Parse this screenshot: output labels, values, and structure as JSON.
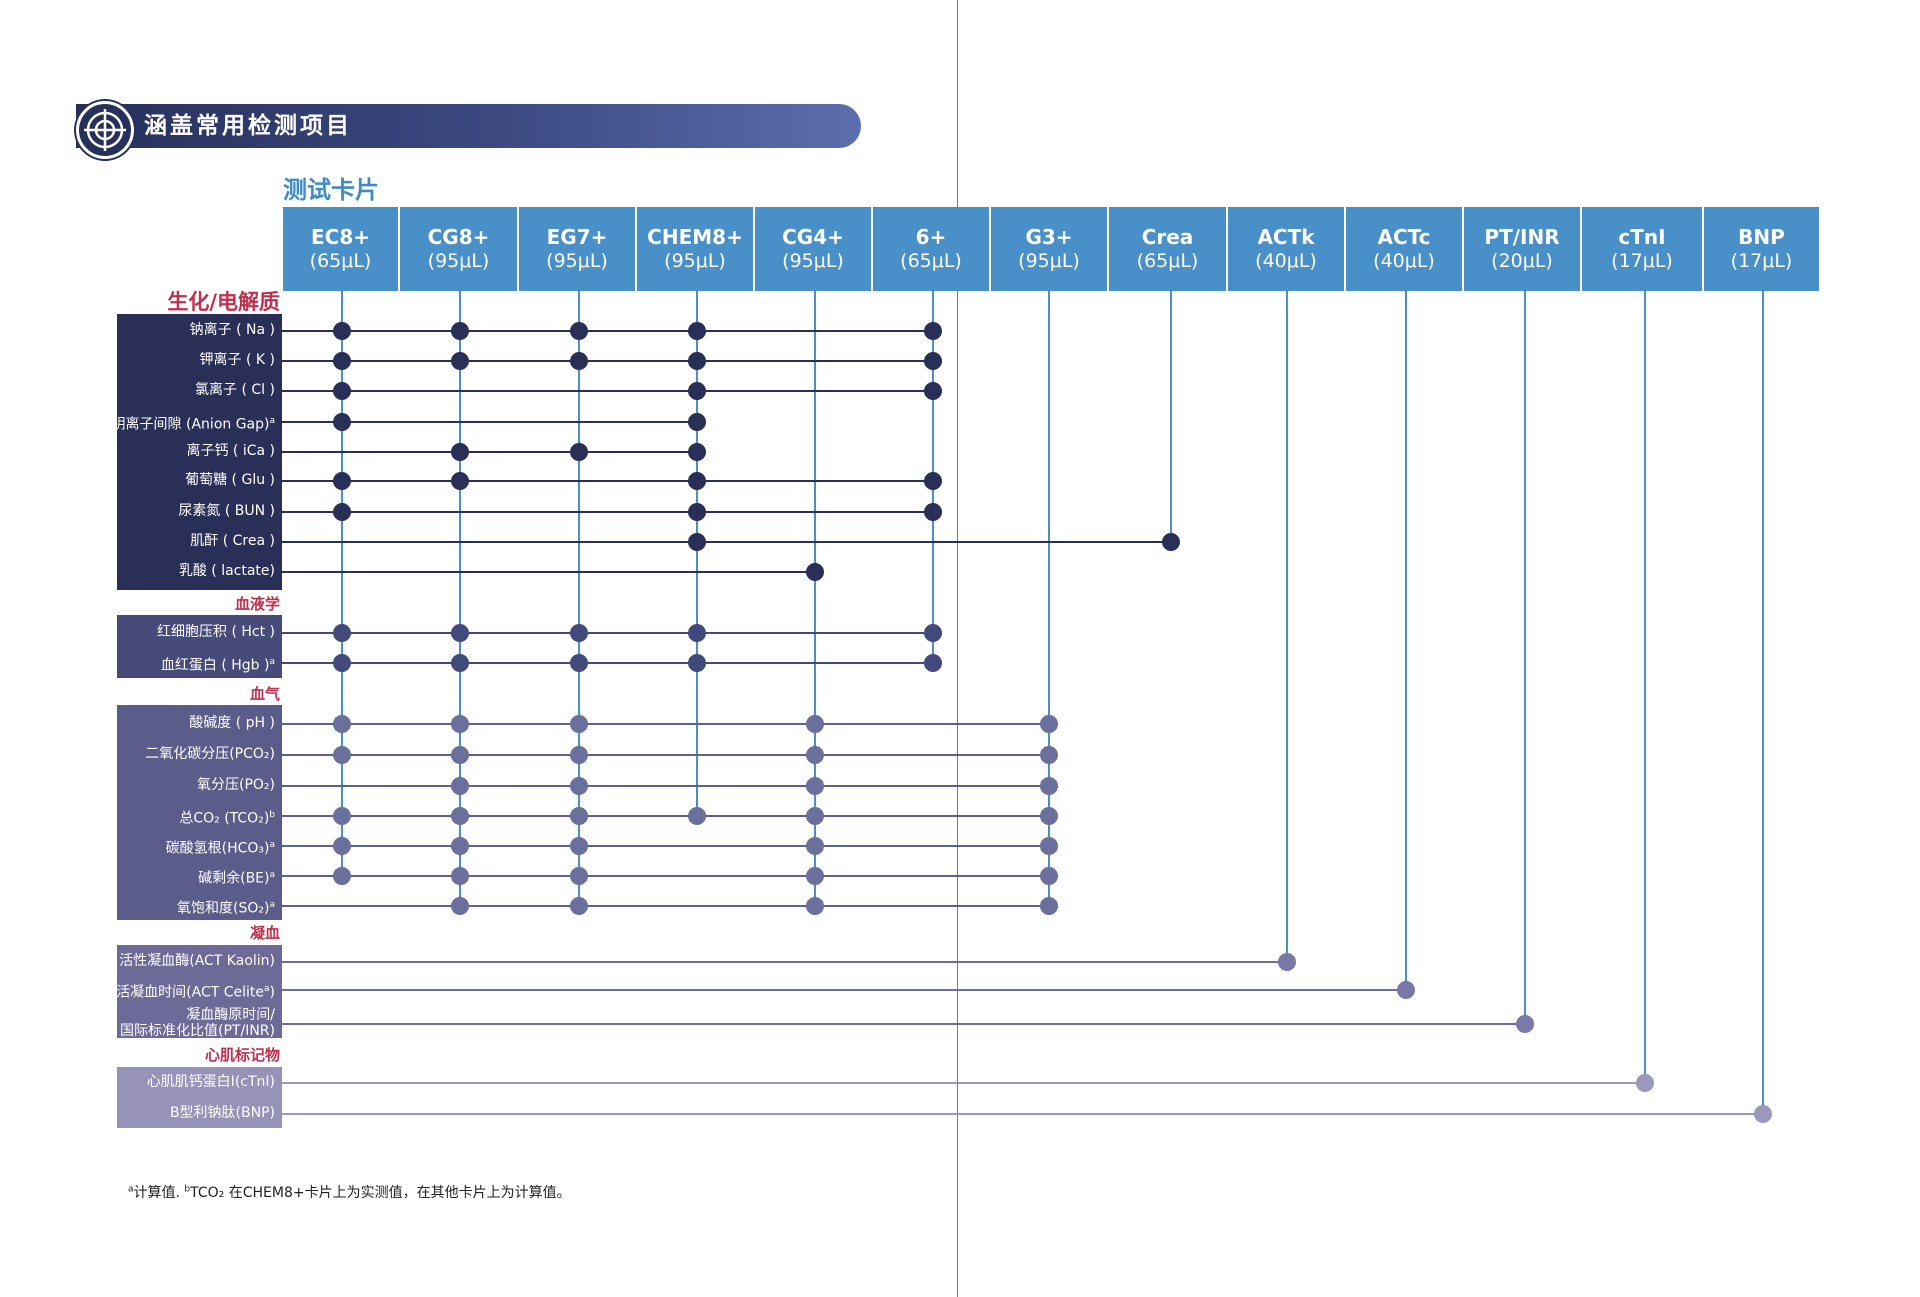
{
  "title": "涵盖常用检测项目",
  "cards_heading": "测试卡片",
  "cards": [
    {
      "name": "EC8+",
      "volume": "(65μL)"
    },
    {
      "name": "CG8+",
      "volume": "(95μL)"
    },
    {
      "name": "EG7+",
      "volume": "(95μL)"
    },
    {
      "name": "CHEM8+",
      "volume": "(95μL)"
    },
    {
      "name": "CG4+",
      "volume": "(95μL)"
    },
    {
      "name": "6+",
      "volume": "(65μL)"
    },
    {
      "name": "G3+",
      "volume": "(95μL)"
    },
    {
      "name": "Crea",
      "volume": "(65μL)"
    },
    {
      "name": "ACTk",
      "volume": "(40μL)"
    },
    {
      "name": "ACTc",
      "volume": "(40μL)"
    },
    {
      "name": "PT/INR",
      "volume": "(20μL)"
    },
    {
      "name": "cTnI",
      "volume": "(17μL)"
    },
    {
      "name": "BNP",
      "volume": "(17μL)"
    }
  ],
  "groups": [
    {
      "label": "生化/电解质",
      "color": "#2a2f58",
      "analytes": [
        {
          "label": "钠离子 ( Na )",
          "sup": "",
          "cards": [
            0,
            1,
            2,
            3,
            5
          ]
        },
        {
          "label": "钾离子 ( K )",
          "sup": "",
          "cards": [
            0,
            1,
            2,
            3,
            5
          ]
        },
        {
          "label": "氯离子 ( Cl )",
          "sup": "",
          "cards": [
            0,
            3,
            5
          ]
        },
        {
          "label": "阴离子间隙 (Anion Gap)",
          "sup": "a",
          "cards": [
            0,
            3
          ]
        },
        {
          "label": "离子钙 ( iCa )",
          "sup": "",
          "cards": [
            1,
            2,
            3
          ]
        },
        {
          "label": "葡萄糖 ( Glu )",
          "sup": "",
          "cards": [
            0,
            1,
            3,
            5
          ]
        },
        {
          "label": "尿素氮 ( BUN )",
          "sup": "",
          "cards": [
            0,
            3,
            5
          ]
        },
        {
          "label": "肌酐 ( Crea )",
          "sup": "",
          "cards": [
            3,
            7
          ]
        },
        {
          "label": "乳酸 ( lactate)",
          "sup": "",
          "cards": [
            4
          ]
        }
      ]
    },
    {
      "label": "血液学",
      "color": "#464b7a",
      "analytes": [
        {
          "label": "红细胞压积 ( Hct )",
          "sup": "",
          "cards": [
            0,
            1,
            2,
            3,
            5
          ]
        },
        {
          "label": "血红蛋白 ( Hgb )",
          "sup": "a",
          "cards": [
            0,
            1,
            2,
            3,
            5
          ]
        }
      ]
    },
    {
      "label": "血气",
      "color": "#5b5c89",
      "analytes": [
        {
          "label": "酸碱度 ( pH )",
          "sup": "",
          "cards": [
            0,
            1,
            2,
            4,
            6
          ]
        },
        {
          "label": "二氧化碳分压(PCO₂)",
          "sup": "",
          "cards": [
            0,
            1,
            2,
            4,
            6
          ]
        },
        {
          "label": "氧分压(PO₂)",
          "sup": "",
          "cards": [
            1,
            2,
            4,
            6
          ]
        },
        {
          "label": "总CO₂ (TCO₂)",
          "sup": "b",
          "cards": [
            0,
            1,
            2,
            3,
            4,
            6
          ]
        },
        {
          "label": "碳酸氢根(HCO₃)",
          "sup": "a",
          "cards": [
            0,
            1,
            2,
            4,
            6
          ]
        },
        {
          "label": "碱剩余(BE)",
          "sup": "a",
          "cards": [
            0,
            1,
            2,
            4,
            6
          ]
        },
        {
          "label": "氧饱和度(SO₂)",
          "sup": "a",
          "cards": [
            1,
            2,
            4,
            6
          ]
        }
      ]
    },
    {
      "label": "凝血",
      "color": "#6d6a98",
      "analytes": [
        {
          "label": "活性凝血酶(ACT Kaolin)",
          "sup": "",
          "cards": [
            8
          ]
        },
        {
          "label": "激活凝血时间(ACT Celite",
          "sup": "a",
          "suffix": ")",
          "cards": [
            9
          ]
        },
        {
          "label": "凝血酶原时间/\n国际标准化比值(PT/INR)",
          "sup": "",
          "cards": [
            10
          ]
        }
      ]
    },
    {
      "label": "心肌标记物",
      "color": "#9793b8",
      "analytes": [
        {
          "label": "心肌肌钙蛋白I(cTnI)",
          "sup": "",
          "cards": [
            11
          ]
        },
        {
          "label": "B型利钠肽(BNP)",
          "sup": "",
          "cards": [
            12
          ]
        }
      ]
    }
  ],
  "footnote": {
    "a_marker": "a",
    "a_text": "计算值. ",
    "b_marker": "b",
    "b_text": "TCO₂ 在CHEM8+卡片上为实测值，在其他卡片上为计算值。"
  },
  "colors": {
    "card_header": "#4a90c8",
    "card_line": "#4a90c8",
    "section_label": "#c0304e"
  }
}
